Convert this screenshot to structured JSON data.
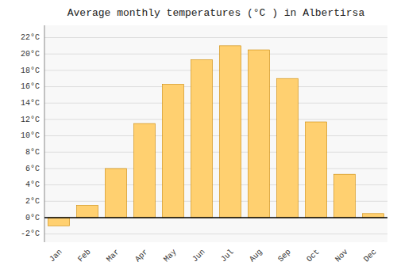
{
  "chart_data": {
    "type": "bar",
    "title": "Average monthly temperatures (°C ) in Albertirsa",
    "categories": [
      "Jan",
      "Feb",
      "Mar",
      "Apr",
      "May",
      "Jun",
      "Jul",
      "Aug",
      "Sep",
      "Oct",
      "Nov",
      "Dec"
    ],
    "values": [
      -1.0,
      1.5,
      6.0,
      11.5,
      16.3,
      19.3,
      21.0,
      20.5,
      17.0,
      11.7,
      5.3,
      0.5
    ],
    "color": "#FFD070",
    "ylim": [
      -3.0,
      23.5
    ],
    "yticks": [
      {
        "value": -2,
        "label": "-2°C"
      },
      {
        "value": 0,
        "label": "0°C"
      },
      {
        "value": 2,
        "label": "2°C"
      },
      {
        "value": 4,
        "label": "4°C"
      },
      {
        "value": 6,
        "label": "6°C"
      },
      {
        "value": 8,
        "label": "8°C"
      },
      {
        "value": 10,
        "label": "10°C"
      },
      {
        "value": 12,
        "label": "12°C"
      },
      {
        "value": 14,
        "label": "14°C"
      },
      {
        "value": 16,
        "label": "16°C"
      },
      {
        "value": 18,
        "label": "18°C"
      },
      {
        "value": 20,
        "label": "20°C"
      },
      {
        "value": 22,
        "label": "22°C"
      }
    ],
    "grid": true
  }
}
